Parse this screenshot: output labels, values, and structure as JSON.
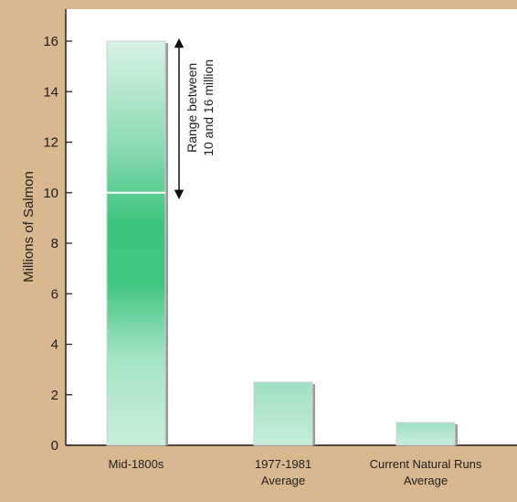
{
  "chart_data": {
    "type": "bar",
    "title": "",
    "xlabel": "",
    "ylabel": "Millions of Salmon",
    "ylim": [
      0,
      17
    ],
    "yticks": [
      "0",
      "2",
      "4",
      "6",
      "8",
      "10",
      "12",
      "14",
      "16"
    ],
    "categories": [
      {
        "line1": "Mid-1800s",
        "line2": ""
      },
      {
        "line1": "1977-1981",
        "line2": "Average"
      },
      {
        "line1": "Current Natural Runs",
        "line2": "Average"
      }
    ],
    "values": [
      16,
      2.5,
      0.9
    ],
    "range_marker": {
      "low": 10,
      "high": 16
    },
    "annotation": {
      "line1": "Range between",
      "line2": "10 and 16 million"
    },
    "grid": false,
    "colors": {
      "frame": "#d9b88f",
      "bar_light": "#d9f2e6",
      "bar_dark": "#3cc47e",
      "bar_edge": "#7a7a7a"
    }
  }
}
